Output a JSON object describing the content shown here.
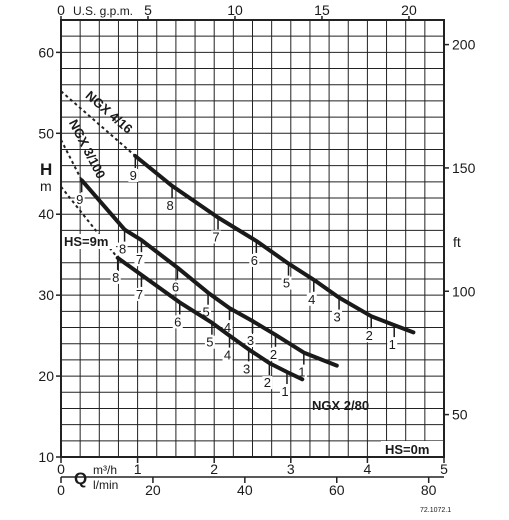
{
  "chart_data": {
    "type": "line",
    "title": "",
    "x_axis": {
      "unit_bottom": "m³/h",
      "unit_bottom2": "l/min",
      "unit_top": "U.S. g.p.m.",
      "symbol": "Q",
      "range": [
        0,
        5
      ],
      "ticks": [
        0,
        1,
        2,
        3,
        4,
        5
      ],
      "lmin_ticks": [
        0,
        20,
        40,
        60,
        80
      ],
      "gpm_ticks": [
        0,
        5,
        10,
        15,
        20
      ]
    },
    "y_axis": {
      "symbol": "H",
      "unit": "m",
      "range": [
        10,
        64
      ],
      "ticks": [
        10,
        20,
        30,
        40,
        50,
        60
      ],
      "ft_unit": "ft",
      "ft_ticks": [
        50,
        100,
        150,
        200
      ]
    },
    "annotations": {
      "hs_9m": "HS=9m",
      "hs_0m": "HS=0m",
      "ref": "72.1072.1"
    },
    "series": [
      {
        "name": "NGX 4/16",
        "x": [
          0,
          0.97,
          1.45,
          2.05,
          2.55,
          2.97,
          3.3,
          3.63,
          4.05,
          4.35,
          4.6
        ],
        "y": [
          55.2,
          47.2,
          43.5,
          39.6,
          36.7,
          33.9,
          31.9,
          29.7,
          27.4,
          26.3,
          25.4
        ],
        "marks": [
          "",
          "9",
          "8",
          "7",
          "6",
          "5",
          "4",
          "3",
          "2",
          "1",
          ""
        ]
      },
      {
        "name": "NGX 3/100",
        "x": [
          0,
          0.27,
          0.83,
          1.05,
          1.52,
          1.92,
          2.2,
          2.5,
          2.8,
          3.17,
          3.6
        ],
        "y": [
          49.2,
          44.2,
          38.1,
          36.8,
          33.4,
          30.3,
          28.4,
          26.8,
          25.1,
          22.9,
          21.3
        ],
        "marks": [
          "",
          "9",
          "8",
          "7",
          "6",
          "5",
          "4",
          "3",
          "2",
          "1",
          ""
        ]
      },
      {
        "name": "NGX 2/80",
        "x": [
          0,
          0.74,
          1.05,
          1.55,
          1.97,
          2.2,
          2.45,
          2.72,
          2.95,
          3.15
        ],
        "y": [
          43.4,
          34.6,
          32.5,
          29.1,
          26.6,
          25,
          23.3,
          21.6,
          20.5,
          19.6
        ],
        "marks": [
          "",
          "8",
          "7",
          "6",
          "5",
          "4",
          "3",
          "2",
          "1",
          ""
        ]
      }
    ]
  }
}
